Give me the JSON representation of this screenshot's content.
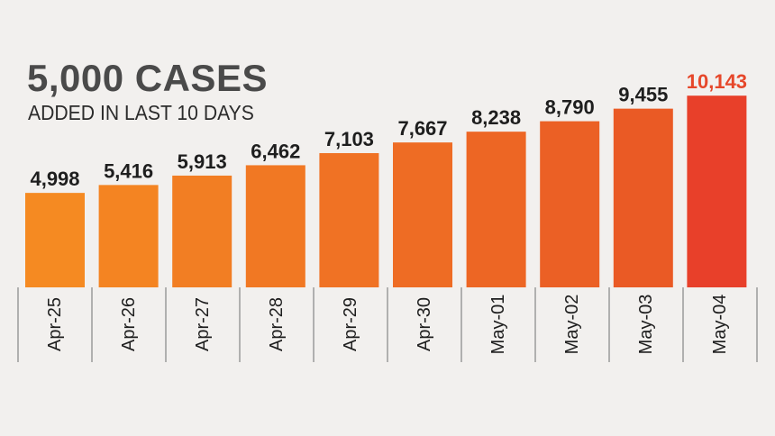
{
  "headline": "5,000 CASES",
  "subheadline": "ADDED IN LAST 10 DAYS",
  "colors": {
    "background": "#f2f0ee",
    "bar_start": "#f58a22",
    "bar_end": "#ea5a25",
    "bar_highlight": "#e8402a",
    "label_default": "#1e1e1e",
    "label_highlight": "#e6472a",
    "axis_line": "#9a9a9a"
  },
  "chart_data": {
    "type": "bar",
    "title": "5,000 CASES",
    "subtitle": "ADDED IN LAST 10 DAYS",
    "categories": [
      "Apr-25",
      "Apr-26",
      "Apr-27",
      "Apr-28",
      "Apr-29",
      "Apr-30",
      "May-01",
      "May-02",
      "May-03",
      "May-04"
    ],
    "values": [
      4998,
      5416,
      5913,
      6462,
      7103,
      7667,
      8238,
      8790,
      9455,
      10143
    ],
    "value_labels": [
      "4,998",
      "5,416",
      "5,913",
      "6,462",
      "7,103",
      "7,667",
      "8,238",
      "8,790",
      "9,455",
      "10,143"
    ],
    "highlight_index": 9,
    "xlabel": "",
    "ylabel": "",
    "grid": false,
    "legend": "none"
  }
}
